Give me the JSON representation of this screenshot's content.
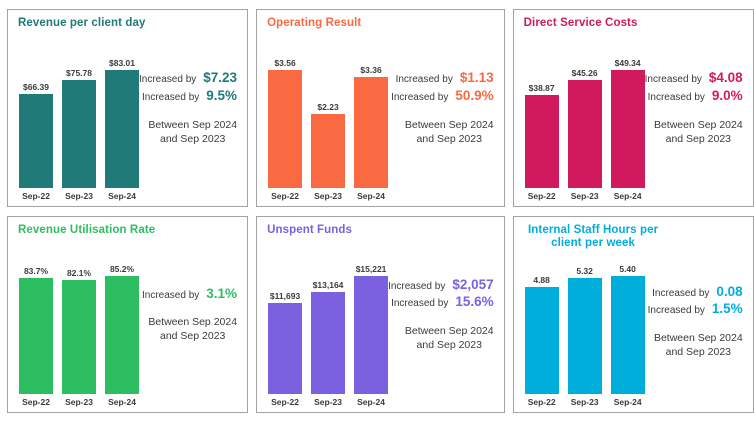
{
  "chart_data": [
    {
      "type": "bar",
      "title": "Revenue per client day",
      "categories": [
        "Sep-22",
        "Sep-23",
        "Sep-24"
      ],
      "values": [
        66.39,
        75.78,
        83.01
      ],
      "value_labels": [
        "$66.39",
        "$75.78",
        "$83.01"
      ],
      "color": "#1f7a78",
      "ylim": [
        0,
        83.01
      ],
      "grid": false,
      "legend": "none"
    },
    {
      "type": "bar",
      "title": "Operating Result",
      "categories": [
        "Sep-22",
        "Sep-23",
        "Sep-24"
      ],
      "values": [
        3.56,
        2.23,
        3.36
      ],
      "value_labels": [
        "$3.56",
        "$2.23",
        "$3.36"
      ],
      "color": "#f96a42",
      "ylim": [
        0,
        3.56
      ],
      "grid": false,
      "legend": "none"
    },
    {
      "type": "bar",
      "title": "Direct Service Costs",
      "categories": [
        "Sep-22",
        "Sep-23",
        "Sep-24"
      ],
      "values": [
        38.87,
        45.26,
        49.34
      ],
      "value_labels": [
        "$38.87",
        "$45.26",
        "$49.34"
      ],
      "color": "#d11a5e",
      "ylim": [
        0,
        49.34
      ],
      "grid": false,
      "legend": "none"
    },
    {
      "type": "bar",
      "title": "Revenue Utilisation Rate",
      "categories": [
        "Sep-22",
        "Sep-23",
        "Sep-24"
      ],
      "values": [
        83.7,
        82.1,
        85.2
      ],
      "value_labels": [
        "83.7%",
        "82.1%",
        "85.2%"
      ],
      "color": "#2ebe62",
      "ylim": [
        0,
        85.2
      ],
      "grid": false,
      "legend": "none"
    },
    {
      "type": "bar",
      "title": "Unspent Funds",
      "categories": [
        "Sep-22",
        "Sep-23",
        "Sep-24"
      ],
      "values": [
        11693,
        13164,
        15221
      ],
      "value_labels": [
        "$11,693",
        "$13,164",
        "$15,221"
      ],
      "color": "#7b60e0",
      "ylim": [
        0,
        15221
      ],
      "grid": false,
      "legend": "none"
    },
    {
      "type": "bar",
      "title": "Internal Staff Hours per client per week",
      "categories": [
        "Sep-22",
        "Sep-23",
        "Sep-24"
      ],
      "values": [
        4.88,
        5.32,
        5.4
      ],
      "value_labels": [
        "4.88",
        "5.32",
        "5.40"
      ],
      "color": "#00aedb",
      "ylim": [
        0,
        5.4
      ],
      "grid": false,
      "legend": "none"
    }
  ],
  "cards": [
    {
      "stats": [
        {
          "label": "Increased by",
          "value": "$7.23"
        },
        {
          "label": "Increased by",
          "value": "9.5%"
        }
      ],
      "period_line1": "Between Sep 2024",
      "period_line2": "and Sep 2023"
    },
    {
      "stats": [
        {
          "label": "Increased by",
          "value": "$1.13"
        },
        {
          "label": "Increased by",
          "value": "50.9%"
        }
      ],
      "period_line1": "Between Sep 2024",
      "period_line2": "and Sep 2023"
    },
    {
      "stats": [
        {
          "label": "Increased by",
          "value": "$4.08"
        },
        {
          "label": "Increased by",
          "value": "9.0%"
        }
      ],
      "period_line1": "Between Sep 2024",
      "period_line2": "and Sep 2023"
    },
    {
      "stats": [
        {
          "label": "Increased by",
          "value": "3.1%"
        }
      ],
      "period_line1": "Between Sep 2024",
      "period_line2": "and Sep 2023"
    },
    {
      "stats": [
        {
          "label": "Increased by",
          "value": "$2,057"
        },
        {
          "label": "Increased by",
          "value": "15.6%"
        }
      ],
      "period_line1": "Between Sep 2024",
      "period_line2": "and Sep 2023"
    },
    {
      "stats": [
        {
          "label": "Increased by",
          "value": "0.08"
        },
        {
          "label": "Increased by",
          "value": "1.5%"
        }
      ],
      "period_line1": "Between Sep 2024",
      "period_line2": "and Sep 2023"
    }
  ]
}
